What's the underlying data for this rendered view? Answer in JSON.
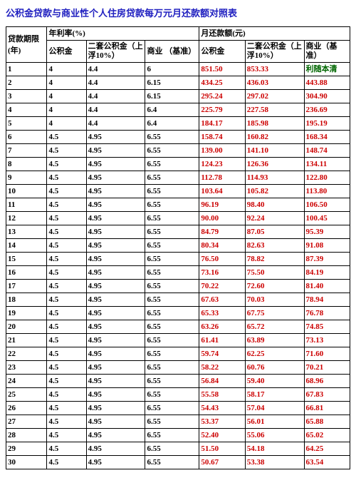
{
  "title": "公积金贷款与商业性个人住房贷款每万元月还款额对照表",
  "headers": {
    "group1": "贷款期限",
    "group2": "年利率(%)",
    "group3": "月还款额(元)",
    "sub": {
      "year": "(年)",
      "gjj": "公积金",
      "gjj2": "二套公积金（上浮10%）",
      "biz": "商业 （基准）",
      "gjj_p": "公积金",
      "gjj2_p": "二套公积金（上浮10%）",
      "biz_p": "商业（基准）"
    }
  },
  "note": "利随本清",
  "rows": [
    {
      "y": "1",
      "r1": "4",
      "r2": "4.4",
      "r3": "6",
      "p1": "851.50",
      "p2": "853.33"
    },
    {
      "y": "2",
      "r1": "4",
      "r2": "4.4",
      "r3": "6.15",
      "p1": "434.25",
      "p2": "436.03",
      "p3": "443.88"
    },
    {
      "y": "3",
      "r1": "4",
      "r2": "4.4",
      "r3": "6.15",
      "p1": "295.24",
      "p2": "297.02",
      "p3": "304.90"
    },
    {
      "y": "4",
      "r1": "4",
      "r2": "4.4",
      "r3": "6.4",
      "p1": "225.79",
      "p2": "227.58",
      "p3": "236.69"
    },
    {
      "y": "5",
      "r1": "4",
      "r2": "4.4",
      "r3": "6.4",
      "p1": "184.17",
      "p2": "185.98",
      "p3": "195.19"
    },
    {
      "y": "6",
      "r1": "4.5",
      "r2": "4.95",
      "r3": "6.55",
      "p1": "158.74",
      "p2": "160.82",
      "p3": "168.34"
    },
    {
      "y": "7",
      "r1": "4.5",
      "r2": "4.95",
      "r3": "6.55",
      "p1": "139.00",
      "p2": "141.10",
      "p3": "148.74"
    },
    {
      "y": "8",
      "r1": "4.5",
      "r2": "4.95",
      "r3": "6.55",
      "p1": "124.23",
      "p2": "126.36",
      "p3": "134.11"
    },
    {
      "y": "9",
      "r1": "4.5",
      "r2": "4.95",
      "r3": "6.55",
      "p1": "112.78",
      "p2": "114.93",
      "p3": "122.80"
    },
    {
      "y": "10",
      "r1": "4.5",
      "r2": "4.95",
      "r3": "6.55",
      "p1": "103.64",
      "p2": "105.82",
      "p3": "113.80"
    },
    {
      "y": "11",
      "r1": "4.5",
      "r2": "4.95",
      "r3": "6.55",
      "p1": "96.19",
      "p2": "98.40",
      "p3": "106.50"
    },
    {
      "y": "12",
      "r1": "4.5",
      "r2": "4.95",
      "r3": "6.55",
      "p1": "90.00",
      "p2": "92.24",
      "p3": "100.45"
    },
    {
      "y": "13",
      "r1": "4.5",
      "r2": "4.95",
      "r3": "6.55",
      "p1": "84.79",
      "p2": "87.05",
      "p3": "95.39"
    },
    {
      "y": "14",
      "r1": "4.5",
      "r2": "4.95",
      "r3": "6.55",
      "p1": "80.34",
      "p2": "82.63",
      "p3": "91.08"
    },
    {
      "y": "15",
      "r1": "4.5",
      "r2": "4.95",
      "r3": "6.55",
      "p1": "76.50",
      "p2": "78.82",
      "p3": "87.39"
    },
    {
      "y": "16",
      "r1": "4.5",
      "r2": "4.95",
      "r3": "6.55",
      "p1": "73.16",
      "p2": "75.50",
      "p3": "84.19"
    },
    {
      "y": "17",
      "r1": "4.5",
      "r2": "4.95",
      "r3": "6.55",
      "p1": "70.22",
      "p2": "72.60",
      "p3": "81.40"
    },
    {
      "y": "18",
      "r1": "4.5",
      "r2": "4.95",
      "r3": "6.55",
      "p1": "67.63",
      "p2": "70.03",
      "p3": "78.94"
    },
    {
      "y": "19",
      "r1": "4.5",
      "r2": "4.95",
      "r3": "6.55",
      "p1": "65.33",
      "p2": "67.75",
      "p3": "76.78"
    },
    {
      "y": "20",
      "r1": "4.5",
      "r2": "4.95",
      "r3": "6.55",
      "p1": "63.26",
      "p2": "65.72",
      "p3": "74.85"
    },
    {
      "y": "21",
      "r1": "4.5",
      "r2": "4.95",
      "r3": "6.55",
      "p1": "61.41",
      "p2": "63.89",
      "p3": "73.13"
    },
    {
      "y": "22",
      "r1": "4.5",
      "r2": "4.95",
      "r3": "6.55",
      "p1": "59.74",
      "p2": "62.25",
      "p3": "71.60"
    },
    {
      "y": "23",
      "r1": "4.5",
      "r2": "4.95",
      "r3": "6.55",
      "p1": "58.22",
      "p2": "60.76",
      "p3": "70.21"
    },
    {
      "y": "24",
      "r1": "4.5",
      "r2": "4.95",
      "r3": "6.55",
      "p1": "56.84",
      "p2": "59.40",
      "p3": "68.96"
    },
    {
      "y": "25",
      "r1": "4.5",
      "r2": "4.95",
      "r3": "6.55",
      "p1": "55.58",
      "p2": "58.17",
      "p3": "67.83"
    },
    {
      "y": "26",
      "r1": "4.5",
      "r2": "4.95",
      "r3": "6.55",
      "p1": "54.43",
      "p2": "57.04",
      "p3": "66.81"
    },
    {
      "y": "27",
      "r1": "4.5",
      "r2": "4.95",
      "r3": "6.55",
      "p1": "53.37",
      "p2": "56.01",
      "p3": "65.88"
    },
    {
      "y": "28",
      "r1": "4.5",
      "r2": "4.95",
      "r3": "6.55",
      "p1": "52.40",
      "p2": "55.06",
      "p3": "65.02"
    },
    {
      "y": "29",
      "r1": "4.5",
      "r2": "4.95",
      "r3": "6.55",
      "p1": "51.50",
      "p2": "54.18",
      "p3": "64.25"
    },
    {
      "y": "30",
      "r1": "4.5",
      "r2": "4.95",
      "r3": "6.55",
      "p1": "50.67",
      "p2": "53.38",
      "p3": "63.54"
    }
  ]
}
